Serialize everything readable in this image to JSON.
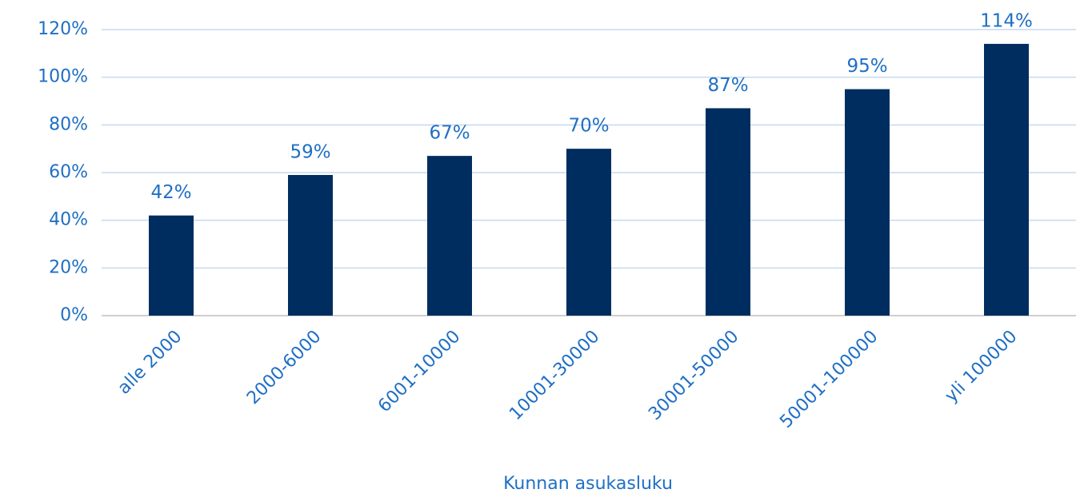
{
  "chart_data": {
    "type": "bar",
    "x_label": "Kunnan asukasluku",
    "categories": [
      "alle 2000",
      "2000-6000",
      "6001-10000",
      "10001-30000",
      "30001-50000",
      "50001-100000",
      "yli 100000"
    ],
    "values": [
      42,
      59,
      67,
      70,
      87,
      95,
      114
    ],
    "value_labels": [
      "42%",
      "59%",
      "67%",
      "70%",
      "87%",
      "95%",
      "114%"
    ],
    "color": "#002d5f",
    "ylim": [
      0,
      120
    ],
    "yticks": [
      {
        "value": 0,
        "label": "0%"
      },
      {
        "value": 20,
        "label": "20%"
      },
      {
        "value": 40,
        "label": "40%"
      },
      {
        "value": 60,
        "label": "60%"
      },
      {
        "value": 80,
        "label": "80%"
      },
      {
        "value": 100,
        "label": "100%"
      },
      {
        "value": 120,
        "label": "120%"
      }
    ],
    "grid": true
  }
}
